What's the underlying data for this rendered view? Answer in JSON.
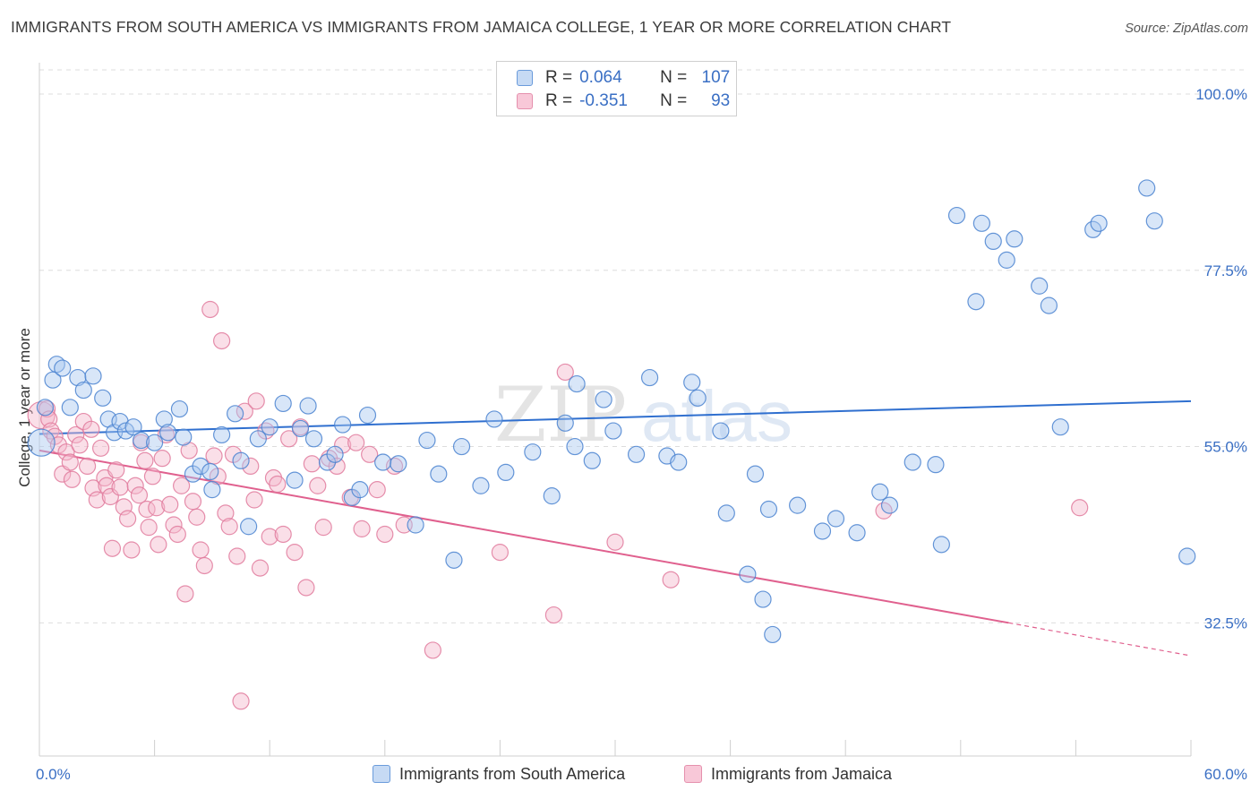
{
  "title": "IMMIGRANTS FROM SOUTH AMERICA VS IMMIGRANTS FROM JAMAICA COLLEGE, 1 YEAR OR MORE CORRELATION CHART",
  "source": "Source: ZipAtlas.com",
  "watermark": {
    "zip": "ZIP",
    "atlas": "atlas"
  },
  "stats": [
    {
      "r_label": "R =",
      "r_value": "0.064",
      "n_label": "N =",
      "n_value": "107"
    },
    {
      "r_label": "R =",
      "r_value": "-0.351",
      "n_label": "N =",
      "n_value": "93"
    }
  ],
  "colors": {
    "blue_fill": "#a8c8f0",
    "blue_stroke": "#4a82d0",
    "blue_line": "#2f6fcf",
    "pink_fill": "#f5b8cc",
    "pink_stroke": "#e07a9c",
    "pink_line": "#e0608e",
    "tick_label": "#3a6fc4",
    "grid": "#dddddd"
  },
  "chart_data": {
    "type": "scatter",
    "title": "IMMIGRANTS FROM SOUTH AMERICA VS IMMIGRANTS FROM JAMAICA COLLEGE, 1 YEAR OR MORE CORRELATION CHART",
    "xlabel": "",
    "ylabel": "College, 1 year or more",
    "xlim": [
      0,
      60
    ],
    "ylim": [
      15.5,
      104
    ],
    "x_tick_labels": [
      "0.0%",
      "60.0%"
    ],
    "y_ticks": [
      32.5,
      55.0,
      77.5,
      100.0
    ],
    "y_tick_labels": [
      "32.5%",
      "55.0%",
      "77.5%",
      "100.0%"
    ],
    "grid": true,
    "legend_placement": "bottom",
    "series": [
      {
        "name": "Immigrants from South America",
        "trend": {
          "x": [
            0,
            60
          ],
          "y": [
            56.6,
            60.8
          ]
        },
        "points": [
          [
            0.1,
            55.5
          ],
          [
            0.3,
            60.0
          ],
          [
            0.7,
            63.5
          ],
          [
            0.9,
            65.5
          ],
          [
            1.2,
            65.0
          ],
          [
            1.6,
            60.0
          ],
          [
            2.0,
            63.8
          ],
          [
            2.3,
            62.2
          ],
          [
            2.8,
            64.0
          ],
          [
            3.3,
            61.2
          ],
          [
            3.6,
            58.5
          ],
          [
            3.9,
            56.8
          ],
          [
            4.2,
            58.2
          ],
          [
            4.5,
            57.0
          ],
          [
            4.9,
            57.5
          ],
          [
            5.3,
            55.8
          ],
          [
            6.0,
            55.5
          ],
          [
            6.5,
            58.5
          ],
          [
            6.7,
            56.8
          ],
          [
            7.3,
            59.8
          ],
          [
            7.5,
            56.2
          ],
          [
            8.0,
            51.5
          ],
          [
            8.4,
            52.5
          ],
          [
            8.9,
            51.8
          ],
          [
            9.0,
            49.5
          ],
          [
            9.5,
            56.5
          ],
          [
            10.2,
            59.2
          ],
          [
            10.5,
            53.2
          ],
          [
            10.9,
            44.8
          ],
          [
            11.4,
            56.0
          ],
          [
            12.0,
            57.5
          ],
          [
            12.7,
            60.5
          ],
          [
            13.3,
            50.7
          ],
          [
            13.6,
            57.3
          ],
          [
            14.0,
            60.2
          ],
          [
            14.3,
            56.0
          ],
          [
            15.0,
            53.0
          ],
          [
            15.4,
            54.0
          ],
          [
            15.8,
            57.8
          ],
          [
            16.3,
            48.5
          ],
          [
            16.7,
            49.5
          ],
          [
            17.1,
            59.0
          ],
          [
            17.9,
            53.0
          ],
          [
            18.7,
            52.8
          ],
          [
            19.6,
            45.0
          ],
          [
            20.2,
            55.8
          ],
          [
            20.8,
            51.5
          ],
          [
            21.6,
            40.5
          ],
          [
            22.0,
            55.0
          ],
          [
            23.0,
            50.0
          ],
          [
            23.7,
            58.5
          ],
          [
            24.3,
            51.7
          ],
          [
            25.7,
            54.3
          ],
          [
            26.7,
            48.7
          ],
          [
            27.4,
            58.0
          ],
          [
            27.9,
            55.0
          ],
          [
            28.0,
            63.0
          ],
          [
            28.8,
            53.2
          ],
          [
            29.4,
            61.0
          ],
          [
            29.9,
            57.0
          ],
          [
            31.1,
            54.0
          ],
          [
            31.8,
            63.8
          ],
          [
            32.7,
            53.8
          ],
          [
            33.3,
            53.0
          ],
          [
            34.0,
            63.2
          ],
          [
            34.3,
            61.2
          ],
          [
            35.5,
            57.0
          ],
          [
            35.8,
            46.5
          ],
          [
            36.9,
            38.7
          ],
          [
            37.3,
            51.5
          ],
          [
            37.7,
            35.5
          ],
          [
            38.0,
            47.0
          ],
          [
            38.2,
            31.0
          ],
          [
            39.5,
            47.5
          ],
          [
            40.8,
            44.2
          ],
          [
            41.5,
            45.8
          ],
          [
            42.6,
            44.0
          ],
          [
            43.8,
            49.2
          ],
          [
            44.3,
            47.5
          ],
          [
            45.5,
            53.0
          ],
          [
            46.7,
            52.7
          ],
          [
            47.0,
            42.5
          ],
          [
            47.8,
            84.5
          ],
          [
            48.8,
            73.5
          ],
          [
            49.1,
            83.5
          ],
          [
            49.7,
            81.2
          ],
          [
            50.4,
            78.8
          ],
          [
            50.8,
            81.5
          ],
          [
            52.1,
            75.5
          ],
          [
            52.6,
            73.0
          ],
          [
            53.2,
            57.5
          ],
          [
            54.9,
            82.7
          ],
          [
            55.2,
            83.5
          ],
          [
            57.7,
            88.0
          ],
          [
            58.1,
            83.8
          ],
          [
            59.8,
            41.0
          ]
        ]
      },
      {
        "name": "Immigrants from Jamaica",
        "trend": {
          "x": [
            0,
            50.5
          ],
          "y": [
            54.5,
            32.5
          ]
        },
        "trend_extension": {
          "x": [
            50.5,
            60
          ],
          "y": [
            32.5,
            28.3
          ]
        },
        "points": [
          [
            0.1,
            59.0
          ],
          [
            0.4,
            59.8
          ],
          [
            0.5,
            58.5
          ],
          [
            0.6,
            57.0
          ],
          [
            0.8,
            56.3
          ],
          [
            1.0,
            55.2
          ],
          [
            1.2,
            51.5
          ],
          [
            1.4,
            54.3
          ],
          [
            1.6,
            53.0
          ],
          [
            1.7,
            50.8
          ],
          [
            1.9,
            56.5
          ],
          [
            2.1,
            55.2
          ],
          [
            2.3,
            58.2
          ],
          [
            2.5,
            52.5
          ],
          [
            2.7,
            57.2
          ],
          [
            2.8,
            49.7
          ],
          [
            3.0,
            48.2
          ],
          [
            3.2,
            54.8
          ],
          [
            3.4,
            51.0
          ],
          [
            3.5,
            50.0
          ],
          [
            3.7,
            48.6
          ],
          [
            3.8,
            42.0
          ],
          [
            4.0,
            52.0
          ],
          [
            4.2,
            49.8
          ],
          [
            4.4,
            47.3
          ],
          [
            4.6,
            45.8
          ],
          [
            4.8,
            41.8
          ],
          [
            5.0,
            50.0
          ],
          [
            5.2,
            48.8
          ],
          [
            5.3,
            55.5
          ],
          [
            5.5,
            53.2
          ],
          [
            5.6,
            47.0
          ],
          [
            5.7,
            44.7
          ],
          [
            5.9,
            51.2
          ],
          [
            6.1,
            47.2
          ],
          [
            6.2,
            42.5
          ],
          [
            6.4,
            53.5
          ],
          [
            6.6,
            56.5
          ],
          [
            6.8,
            47.6
          ],
          [
            7.0,
            45.0
          ],
          [
            7.2,
            43.8
          ],
          [
            7.4,
            50.0
          ],
          [
            7.6,
            36.2
          ],
          [
            7.8,
            54.5
          ],
          [
            8.0,
            48.0
          ],
          [
            8.2,
            46.0
          ],
          [
            8.4,
            41.8
          ],
          [
            8.6,
            39.8
          ],
          [
            8.9,
            72.5
          ],
          [
            9.1,
            53.8
          ],
          [
            9.3,
            51.2
          ],
          [
            9.5,
            68.5
          ],
          [
            9.7,
            46.5
          ],
          [
            9.9,
            44.8
          ],
          [
            10.1,
            54.0
          ],
          [
            10.3,
            41.0
          ],
          [
            10.5,
            22.5
          ],
          [
            10.7,
            59.5
          ],
          [
            11.0,
            52.5
          ],
          [
            11.2,
            48.2
          ],
          [
            11.3,
            60.8
          ],
          [
            11.5,
            39.5
          ],
          [
            11.8,
            57.0
          ],
          [
            12.0,
            43.5
          ],
          [
            12.2,
            51.0
          ],
          [
            12.4,
            50.2
          ],
          [
            12.7,
            43.8
          ],
          [
            13.0,
            56.0
          ],
          [
            13.3,
            41.5
          ],
          [
            13.6,
            57.5
          ],
          [
            13.9,
            37.0
          ],
          [
            14.2,
            52.8
          ],
          [
            14.5,
            50.0
          ],
          [
            14.8,
            44.7
          ],
          [
            15.1,
            53.5
          ],
          [
            15.5,
            52.5
          ],
          [
            15.8,
            55.2
          ],
          [
            16.2,
            48.5
          ],
          [
            16.5,
            55.5
          ],
          [
            16.8,
            44.5
          ],
          [
            17.2,
            54.0
          ],
          [
            17.6,
            49.5
          ],
          [
            18.0,
            43.8
          ],
          [
            18.5,
            52.5
          ],
          [
            19.0,
            45.0
          ],
          [
            20.5,
            29.0
          ],
          [
            24.0,
            41.5
          ],
          [
            26.8,
            33.5
          ],
          [
            27.4,
            64.5
          ],
          [
            30.0,
            42.8
          ],
          [
            32.9,
            38.0
          ],
          [
            44.0,
            46.8
          ],
          [
            54.2,
            47.2
          ]
        ]
      }
    ]
  }
}
